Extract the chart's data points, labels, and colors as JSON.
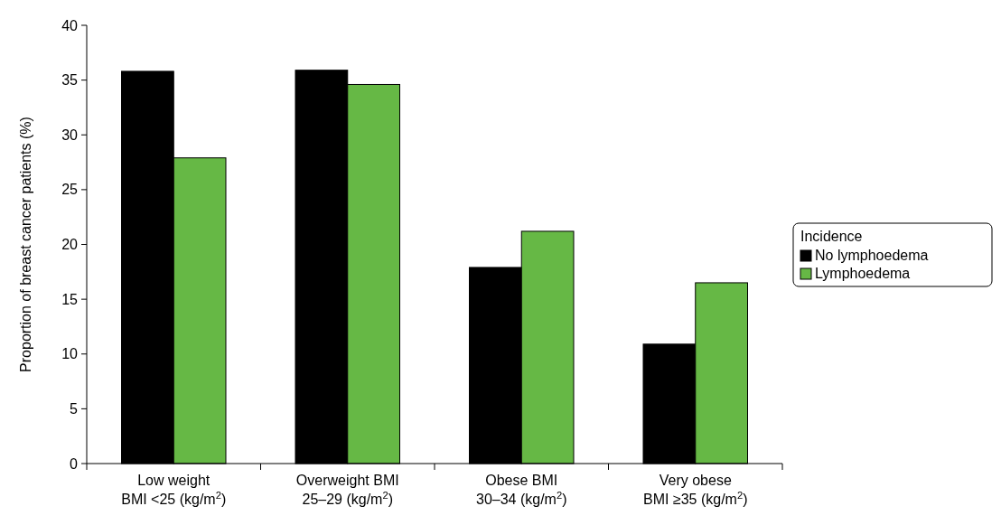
{
  "chart_data": {
    "type": "bar",
    "ylabel": "Proportion of breast cancer patients (%)",
    "categories": [
      "Low weight\nBMI <25 (kg/m$^{2}$)",
      "Overweight BMI\n25–29 (kg/m$^{2}$)",
      "Obese BMI\n30–34 (kg/m$^{2}$)",
      "Very obese\nBMI ≥35 (kg/m$^{2}$)"
    ],
    "series": [
      {
        "name": "No lymphoedema",
        "color": "#000000",
        "values": [
          35.8,
          35.9,
          17.9,
          10.9
        ]
      },
      {
        "name": "Lymphoedema",
        "color": "#66b845",
        "values": [
          27.9,
          34.6,
          21.2,
          16.5
        ]
      }
    ],
    "ylim": [
      0,
      40
    ],
    "yticks": [
      0,
      5,
      10,
      15,
      20,
      25,
      30,
      35,
      40
    ],
    "grid": false,
    "legend": "right",
    "legend_title": "Incidence"
  }
}
